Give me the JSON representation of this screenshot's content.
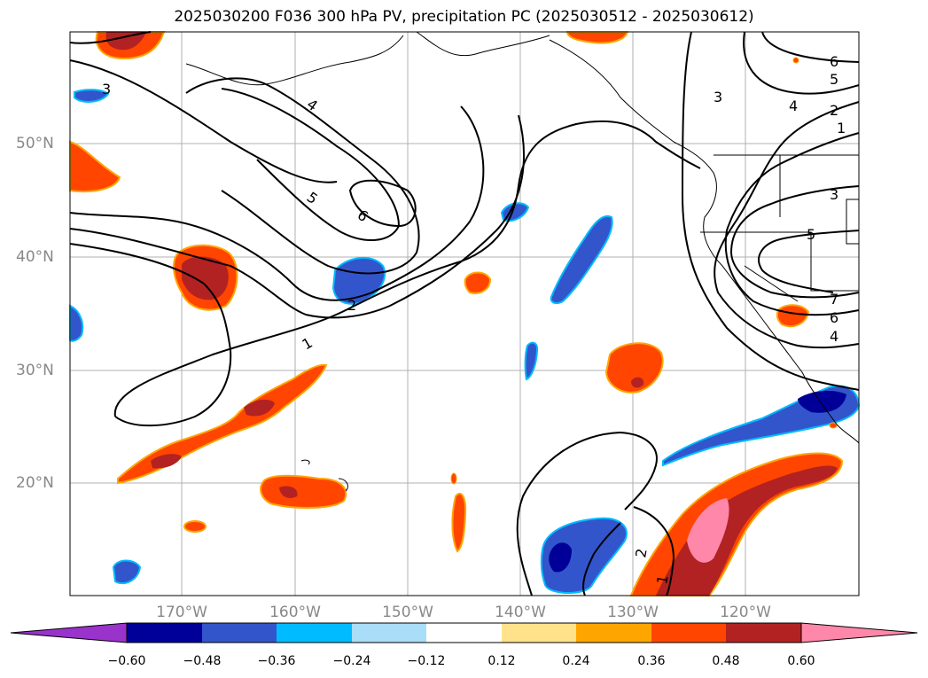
{
  "title": "2025030200 F036 300 hPa PV, precipitation PC (2025030512 - 2025030612)",
  "map": {
    "lat_labels": [
      "50°N",
      "40°N",
      "30°N",
      "20°N"
    ],
    "lon_labels": [
      "170°W",
      "160°W",
      "150°W",
      "140°W",
      "130°W",
      "120°W"
    ],
    "contour_labels": [
      "1",
      "2",
      "3",
      "4",
      "5",
      "6",
      "7"
    ]
  },
  "colorbar": {
    "ticks": [
      "−0.60",
      "−0.48",
      "−0.36",
      "−0.24",
      "−0.12",
      "0.12",
      "0.24",
      "0.36",
      "0.48",
      "0.60"
    ],
    "colors": [
      "#9933cc",
      "#000099",
      "#3355cc",
      "#00bbff",
      "#aaddf7",
      "#ffffff",
      "#ffe28a",
      "#ffa500",
      "#ff4500",
      "#b22222",
      "#ff88aa"
    ]
  }
}
